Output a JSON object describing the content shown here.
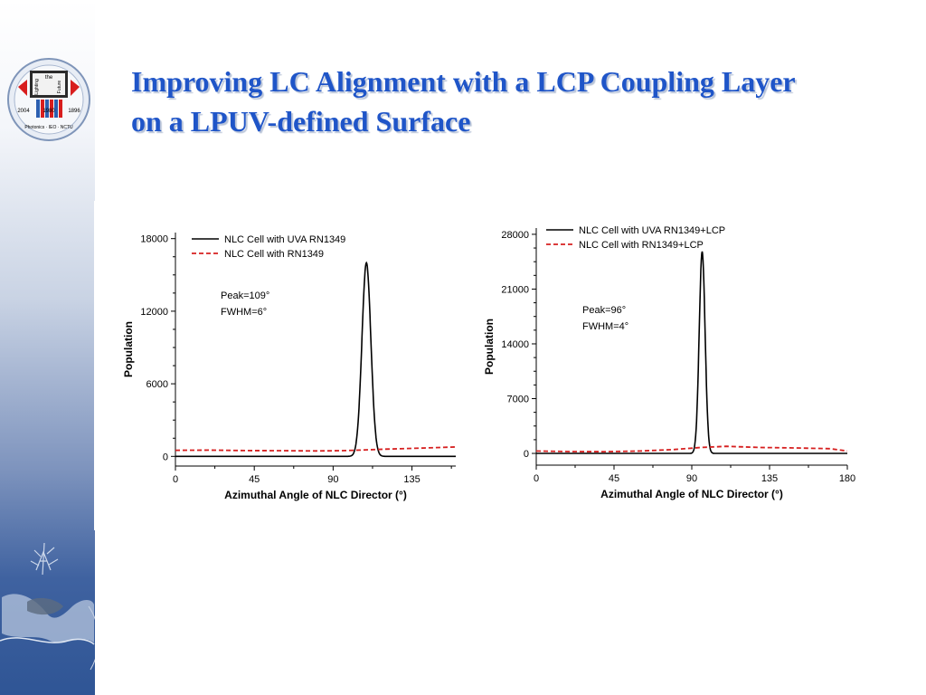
{
  "slide": {
    "title_line1": "Improving LC Alignment with a LCP Coupling Layer",
    "title_line2": "on a LPUV-defined Surface"
  },
  "logo": {
    "text_lighting": "Lighting",
    "text_the": "the",
    "text_future": "Future",
    "year_left": "2004",
    "year_mid": "1980",
    "year_right": "1896",
    "bottom_text": "Photonics · IEO · NCTU"
  },
  "colors": {
    "title": "#1f55c8",
    "series_solid": "#000000",
    "series_dashed": "#d62020",
    "sidebar_dark": "#2f5595"
  },
  "chart_data": [
    {
      "type": "line",
      "title": "",
      "xlabel": "Azimuthal Angle of NLC Director (°)",
      "ylabel": "Population",
      "xlim": [
        0,
        160
      ],
      "ylim": [
        -800,
        18500
      ],
      "xticks": [
        0,
        45,
        90,
        135
      ],
      "yticks": [
        0,
        6000,
        12000,
        18000
      ],
      "legend_position": "top-left",
      "annotation_line1": "Peak=109°",
      "annotation_line2": "FWHM=6°",
      "series": [
        {
          "name": "NLC Cell with UVA RN1349",
          "style": "solid",
          "peak_x": 109,
          "peak_y": 16000,
          "fwhm": 6,
          "baseline": 0
        },
        {
          "name": "NLC Cell with RN1349",
          "style": "dashed",
          "x": [
            0,
            20,
            40,
            60,
            80,
            95,
            105,
            120,
            140,
            160
          ],
          "y": [
            500,
            520,
            480,
            470,
            450,
            470,
            520,
            600,
            680,
            780
          ]
        }
      ]
    },
    {
      "type": "line",
      "title": "",
      "xlabel": "Azimuthal Angle of NLC Director (°)",
      "ylabel": "Population",
      "xlim": [
        0,
        180
      ],
      "ylim": [
        -1500,
        28800
      ],
      "xticks": [
        0,
        45,
        90,
        135,
        180
      ],
      "yticks": [
        0,
        7000,
        14000,
        21000,
        28000
      ],
      "legend_position": "top-left",
      "annotation_line1": "Peak=96°",
      "annotation_line2": "FWHM=4°",
      "series": [
        {
          "name": "NLC Cell with UVA RN1349+LCP",
          "style": "solid",
          "peak_x": 96,
          "peak_y": 25800,
          "fwhm": 4,
          "baseline": 0
        },
        {
          "name": "NLC Cell with RN1349+LCP",
          "style": "dashed",
          "x": [
            0,
            20,
            40,
            60,
            80,
            95,
            110,
            130,
            150,
            170,
            180
          ],
          "y": [
            300,
            230,
            220,
            300,
            500,
            750,
            900,
            750,
            700,
            600,
            300
          ]
        }
      ]
    }
  ]
}
